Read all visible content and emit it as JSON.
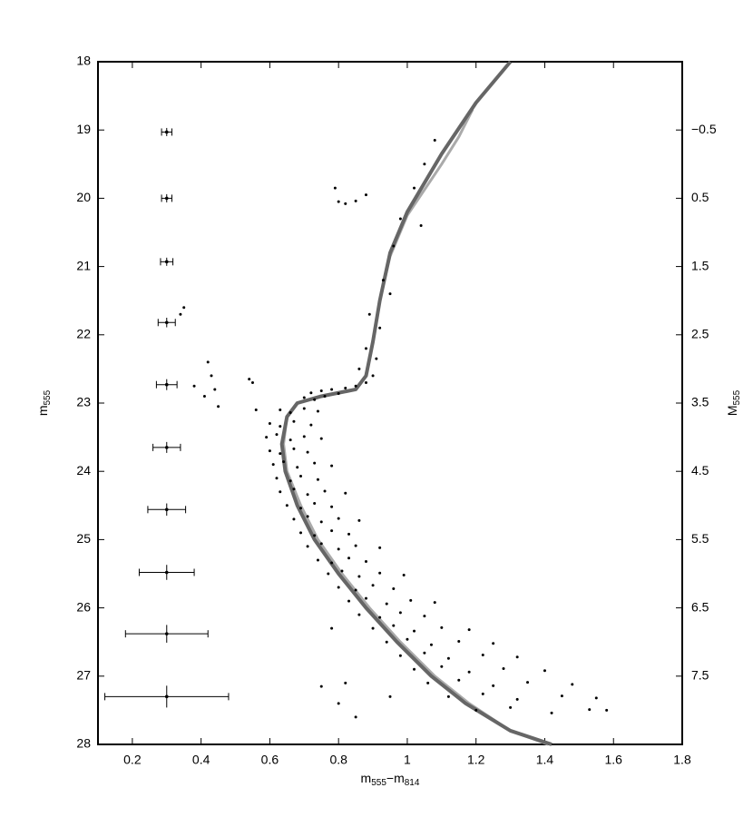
{
  "chart_data": {
    "type": "scatter",
    "xlabel": [
      "m",
      "555",
      "−m",
      "814"
    ],
    "ylabel": [
      "m",
      "555"
    ],
    "y2label": [
      "M",
      "555"
    ],
    "xlim": [
      0.1,
      1.8
    ],
    "xticks": [
      0.2,
      0.4,
      0.6,
      0.8,
      1,
      1.2,
      1.4,
      1.6,
      1.8
    ],
    "ylim": [
      18,
      28
    ],
    "yticks": [
      18,
      19,
      20,
      21,
      22,
      23,
      24,
      25,
      26,
      27,
      28
    ],
    "y_inverted": true,
    "y2lim": [
      -1.5,
      8.5
    ],
    "y2ticks": [
      {
        "value": -0.5,
        "label": "−0.5"
      },
      0.5,
      1.5,
      2.5,
      3.5,
      4.5,
      5.5,
      6.5,
      7.5
    ],
    "point_color": "#000000",
    "x": [
      1.08,
      1.05,
      1.02,
      0.98,
      1.04,
      0.96,
      0.93,
      0.95,
      0.89,
      0.92,
      0.88,
      0.91,
      0.86,
      0.9,
      0.72,
      0.75,
      0.78,
      0.82,
      0.85,
      0.7,
      0.76,
      0.8,
      0.88,
      0.73,
      0.8,
      0.82,
      0.85,
      0.88,
      0.79,
      0.35,
      0.34,
      0.42,
      0.43,
      0.44,
      0.41,
      0.38,
      0.45,
      0.56,
      0.54,
      0.55,
      0.63,
      0.66,
      0.7,
      0.74,
      0.6,
      0.63,
      0.67,
      0.72,
      0.59,
      0.62,
      0.66,
      0.7,
      0.75,
      0.6,
      0.63,
      0.67,
      0.71,
      0.61,
      0.64,
      0.68,
      0.73,
      0.78,
      0.62,
      0.66,
      0.69,
      0.74,
      0.63,
      0.67,
      0.71,
      0.76,
      0.82,
      0.65,
      0.69,
      0.73,
      0.78,
      0.67,
      0.71,
      0.75,
      0.8,
      0.86,
      0.69,
      0.73,
      0.78,
      0.83,
      0.71,
      0.75,
      0.8,
      0.85,
      0.92,
      0.74,
      0.78,
      0.83,
      0.88,
      0.77,
      0.81,
      0.86,
      0.92,
      0.99,
      0.8,
      0.85,
      0.9,
      0.96,
      0.83,
      0.88,
      0.94,
      1.01,
      1.08,
      0.86,
      0.92,
      0.98,
      1.05,
      0.9,
      0.96,
      1.02,
      1.1,
      1.18,
      0.94,
      1.0,
      1.07,
      1.15,
      1.25,
      0.98,
      1.05,
      1.12,
      1.22,
      1.32,
      1.02,
      1.1,
      1.18,
      1.28,
      1.4,
      1.06,
      1.15,
      1.25,
      1.35,
      1.48,
      1.12,
      1.22,
      1.32,
      1.45,
      1.55,
      1.2,
      1.3,
      1.42,
      1.53,
      0.78,
      0.75,
      0.82,
      0.85,
      0.8,
      0.95,
      1.58
    ],
    "y": [
      19.15,
      19.5,
      19.85,
      20.3,
      20.4,
      20.7,
      21.2,
      21.4,
      21.7,
      21.9,
      22.2,
      22.35,
      22.5,
      22.6,
      22.85,
      22.82,
      22.8,
      22.78,
      22.75,
      22.92,
      22.9,
      22.86,
      22.7,
      22.95,
      20.05,
      20.08,
      20.04,
      19.95,
      19.85,
      21.6,
      21.7,
      22.4,
      22.6,
      22.8,
      22.9,
      22.75,
      23.05,
      23.1,
      22.65,
      22.7,
      23.1,
      23.14,
      23.08,
      23.12,
      23.3,
      23.34,
      23.27,
      23.32,
      23.5,
      23.46,
      23.54,
      23.49,
      23.52,
      23.7,
      23.74,
      23.67,
      23.72,
      23.9,
      23.86,
      23.94,
      23.88,
      23.92,
      24.1,
      24.14,
      24.07,
      24.12,
      24.3,
      24.26,
      24.34,
      24.29,
      24.32,
      24.5,
      24.54,
      24.47,
      24.52,
      24.7,
      24.66,
      24.74,
      24.69,
      24.72,
      24.9,
      24.94,
      24.87,
      24.92,
      25.1,
      25.06,
      25.14,
      25.09,
      25.12,
      25.3,
      25.34,
      25.27,
      25.32,
      25.5,
      25.46,
      25.54,
      25.49,
      25.52,
      25.7,
      25.74,
      25.67,
      25.72,
      25.9,
      25.86,
      25.94,
      25.89,
      25.92,
      26.1,
      26.14,
      26.07,
      26.12,
      26.3,
      26.26,
      26.34,
      26.29,
      26.32,
      26.5,
      26.46,
      26.54,
      26.49,
      26.52,
      26.7,
      26.66,
      26.74,
      26.69,
      26.72,
      26.9,
      26.86,
      26.94,
      26.89,
      26.92,
      27.1,
      27.06,
      27.14,
      27.09,
      27.12,
      27.3,
      27.26,
      27.34,
      27.29,
      27.32,
      27.5,
      27.46,
      27.54,
      27.49,
      26.3,
      27.15,
      27.1,
      27.6,
      27.4,
      27.3,
      27.5
    ],
    "errorbars": {
      "x": [
        0.3,
        0.3,
        0.3,
        0.3,
        0.3,
        0.3,
        0.3,
        0.3,
        0.3,
        0.3
      ],
      "y": [
        19.03,
        20.0,
        20.93,
        21.82,
        22.73,
        23.65,
        24.56,
        25.48,
        26.38,
        27.3
      ],
      "xerr": [
        0.015,
        0.015,
        0.018,
        0.025,
        0.03,
        0.04,
        0.055,
        0.08,
        0.12,
        0.18
      ],
      "yerr": [
        0.06,
        0.06,
        0.06,
        0.07,
        0.08,
        0.08,
        0.09,
        0.11,
        0.13,
        0.16
      ]
    },
    "series": [
      {
        "color": "#aaaaaa",
        "width": 3,
        "x": [
          1.19,
          1.15,
          1.1,
          1.0,
          0.95,
          0.92,
          0.9,
          0.88,
          0.85,
          0.75,
          0.68,
          0.65,
          0.64,
          0.65,
          0.69,
          0.74,
          0.81,
          0.89,
          0.98,
          1.08,
          1.18,
          1.3,
          1.41
        ],
        "y": [
          18.7,
          19.1,
          19.5,
          20.25,
          20.85,
          21.5,
          22.1,
          22.6,
          22.8,
          22.9,
          23.0,
          23.2,
          23.6,
          24.0,
          24.5,
          25.0,
          25.5,
          26.0,
          26.5,
          27.0,
          27.4,
          27.8,
          28.0
        ]
      },
      {
        "color": "#666666",
        "width": 4,
        "x": [
          1.3,
          1.2,
          1.1,
          1.0,
          0.95,
          0.92,
          0.9,
          0.88,
          0.85,
          0.75,
          0.68,
          0.65,
          0.635,
          0.645,
          0.68,
          0.73,
          0.8,
          0.88,
          0.97,
          1.07,
          1.17,
          1.3,
          1.42
        ],
        "y": [
          18.0,
          18.6,
          19.35,
          20.2,
          20.8,
          21.5,
          22.1,
          22.6,
          22.8,
          22.9,
          23.0,
          23.2,
          23.6,
          24.0,
          24.5,
          25.0,
          25.5,
          26.0,
          26.5,
          27.0,
          27.4,
          27.8,
          28.0
        ]
      }
    ]
  }
}
